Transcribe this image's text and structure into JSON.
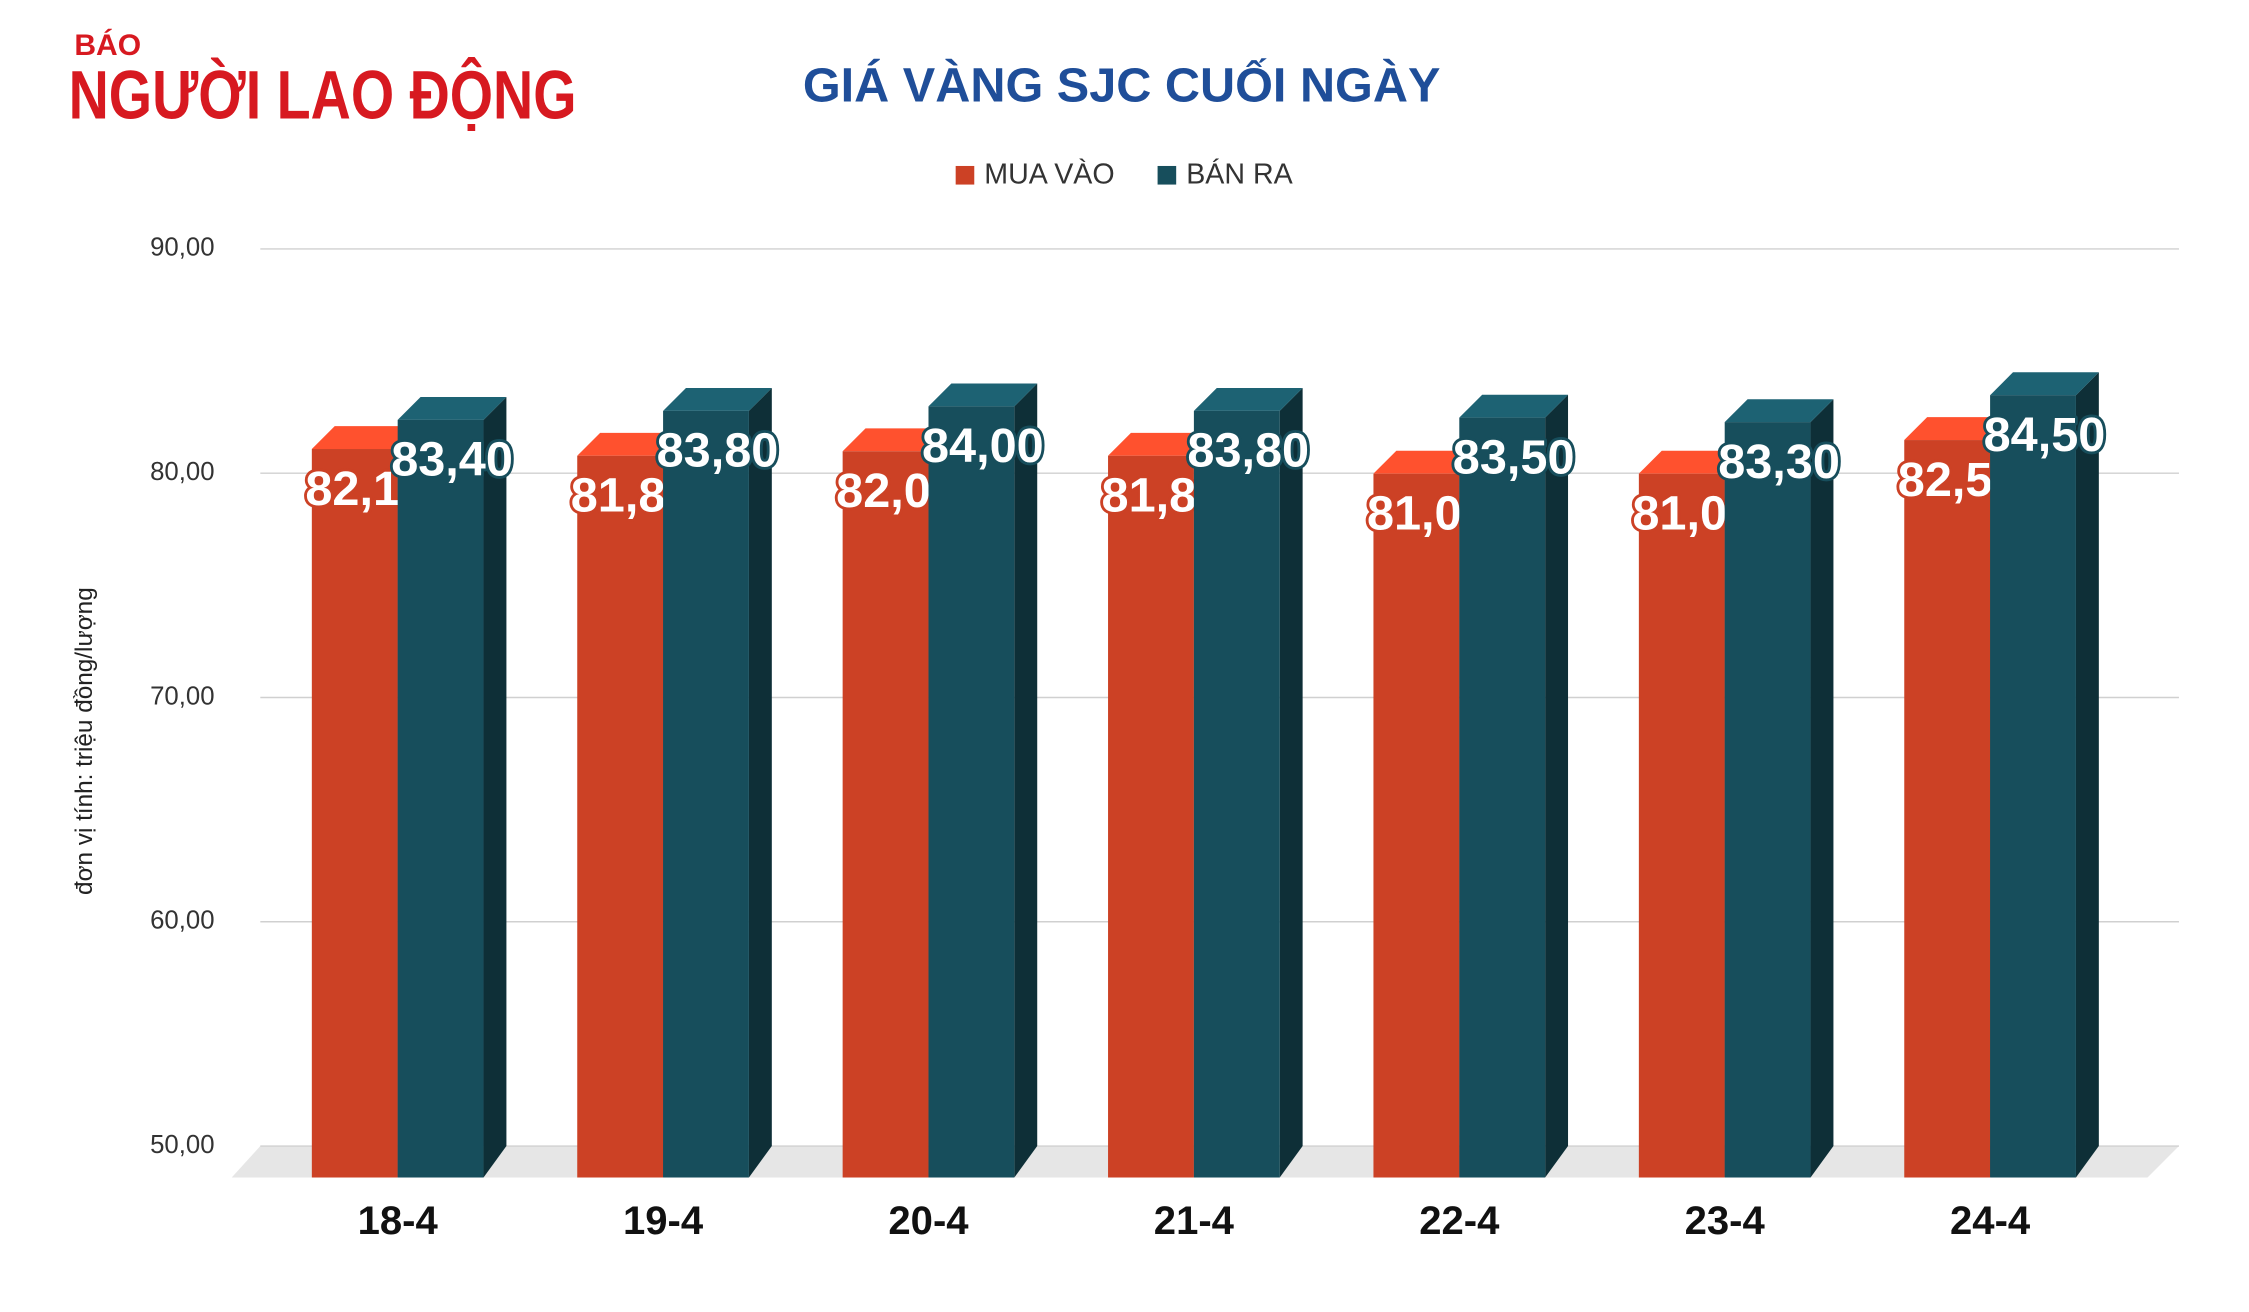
{
  "brand": {
    "prefix": "BÁO",
    "name": "NGƯỜI LAO ĐỘNG"
  },
  "chart_data": {
    "type": "bar3d",
    "title": "GIÁ VÀNG SJC CUỐI NGÀY",
    "y_label": "đơn vị tính: triệu đồng/lượng",
    "categories": [
      "18-4",
      "19-4",
      "20-4",
      "21-4",
      "22-4",
      "23-4",
      "24-4"
    ],
    "series": [
      {
        "name": "MUA VÀO",
        "color": "#cc4125",
        "values": [
          82.1,
          81.8,
          82.0,
          81.8,
          81.0,
          81.0,
          82.5
        ],
        "value_labels": [
          "82,10",
          "81,80",
          "82,00",
          "81,80",
          "81,00",
          "81,00",
          "82,50"
        ]
      },
      {
        "name": "BÁN RA",
        "color": "#174e5c",
        "values": [
          83.4,
          83.8,
          84.0,
          83.8,
          83.5,
          83.3,
          84.5
        ],
        "value_labels": [
          "83,40",
          "83,80",
          "84,00",
          "83,80",
          "83,50",
          "83,30",
          "84,50"
        ]
      }
    ],
    "ylim": [
      50,
      90
    ],
    "yticks": [
      {
        "value": 50,
        "label": "50,00"
      },
      {
        "value": 60,
        "label": "60,00"
      },
      {
        "value": 70,
        "label": "70,00"
      },
      {
        "value": 80,
        "label": "80,00"
      },
      {
        "value": 90,
        "label": "90,00"
      }
    ],
    "grid": true,
    "legend": "top"
  }
}
